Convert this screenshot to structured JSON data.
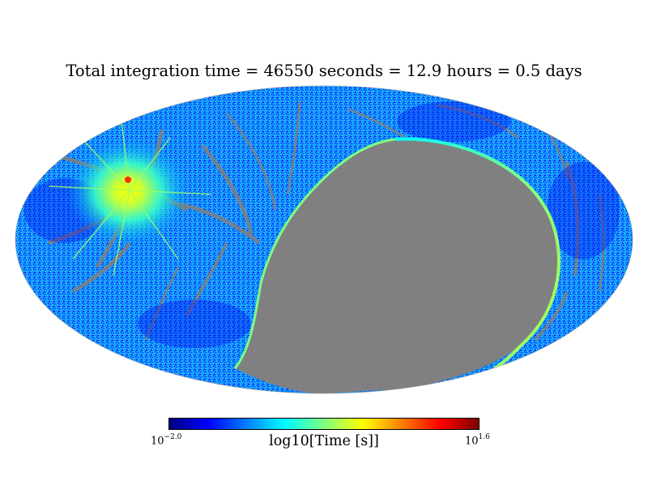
{
  "title": "Total integration time = 46550 seconds = 12.9 hours = 0.5 days",
  "projection": "mollweide",
  "colormap": {
    "name": "jet",
    "stops": [
      "#00007f",
      "#0000ff",
      "#007fff",
      "#00ffff",
      "#7fff7f",
      "#ffff00",
      "#ff7f00",
      "#ff0000",
      "#7f0000"
    ]
  },
  "colors": {
    "unseen": "#808080",
    "background": "#ffffff"
  },
  "colorbar": {
    "label": "log10[Time [s]]",
    "min_base": "10",
    "min_exp": "−2.0",
    "max_base": "10",
    "max_exp": "1.6"
  }
}
